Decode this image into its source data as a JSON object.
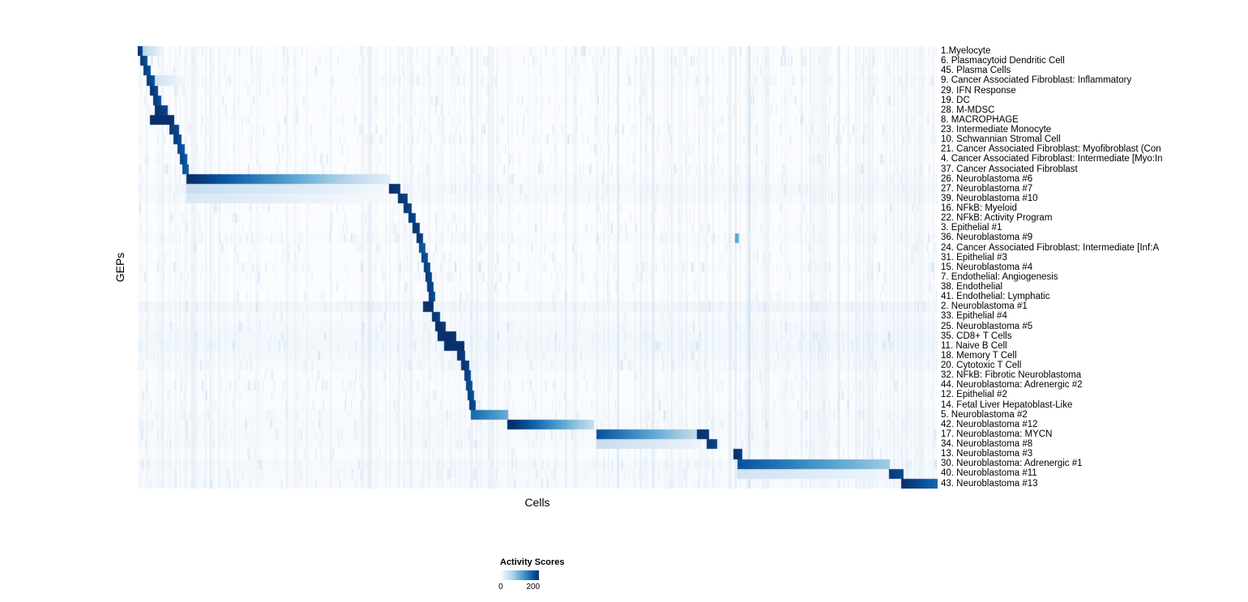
{
  "chart_data": {
    "type": "heatmap",
    "title": "",
    "xlabel": "Cells",
    "ylabel": "GEPs",
    "n_rows": 45,
    "x_axis": "individual cells (columns, unlabeled), grouped by cluster",
    "colorbar": {
      "title": "Activity Scores",
      "vmin": 0,
      "vmax": 235,
      "tick_values": [
        0,
        200
      ],
      "tick_labels": [
        "0",
        "200"
      ],
      "colors": [
        "#ffffff",
        "#deebf7",
        "#c6dbef",
        "#9ecae1",
        "#6baed6",
        "#4292c6",
        "#2171b5",
        "#08519c",
        "#08306b"
      ]
    },
    "column_guides": [
      0.315,
      0.339,
      0.365,
      0.381,
      0.417,
      0.463,
      0.574,
      0.711,
      0.747,
      0.94,
      0.955
    ],
    "rows": [
      {
        "label": "1.Myelocyte",
        "base": 4,
        "segments": [
          [
            0.0,
            0.007,
            232,
            205
          ],
          [
            0.007,
            0.03,
            70,
            12
          ]
        ]
      },
      {
        "label": "6. Plasmacytoid Dendritic Cell",
        "base": 4,
        "segments": [
          [
            0.004,
            0.012,
            226,
            202
          ]
        ]
      },
      {
        "label": "45. Plasma Cells",
        "base": 4,
        "segments": [
          [
            0.008,
            0.016,
            222,
            200
          ]
        ]
      },
      {
        "label": "9. Cancer Associated Fibroblast: Inflammatory",
        "base": 5,
        "segments": [
          [
            0.012,
            0.022,
            226,
            202
          ],
          [
            0.022,
            0.06,
            45,
            8
          ]
        ]
      },
      {
        "label": "29. IFN Response",
        "base": 4,
        "segments": [
          [
            0.016,
            0.025,
            234,
            210
          ]
        ]
      },
      {
        "label": "19. DC",
        "base": 4,
        "segments": [
          [
            0.02,
            0.029,
            226,
            206
          ]
        ]
      },
      {
        "label": "28. M-MDSC",
        "base": 4,
        "segments": [
          [
            0.022,
            0.037,
            234,
            216
          ]
        ]
      },
      {
        "label": "8. MACROPHAGE",
        "base": 4,
        "segments": [
          [
            0.016,
            0.045,
            246,
            236
          ]
        ]
      },
      {
        "label": "23. Intermediate Monocyte",
        "base": 4,
        "segments": [
          [
            0.04,
            0.051,
            230,
            212
          ]
        ]
      },
      {
        "label": "10. Schwannian Stromal Cell",
        "base": 4,
        "segments": [
          [
            0.045,
            0.054,
            226,
            206
          ]
        ]
      },
      {
        "label": "21. Cancer Associated Fibroblast: Myofibroblast (Con",
        "base": 4,
        "segments": [
          [
            0.05,
            0.058,
            216,
            200
          ]
        ]
      },
      {
        "label": "4. Cancer Associated Fibroblast: Intermediate [Myo:In",
        "base": 4,
        "segments": [
          [
            0.053,
            0.061,
            216,
            200
          ]
        ]
      },
      {
        "label": "37. Cancer Associated Fibroblast",
        "base": 4,
        "segments": [
          [
            0.056,
            0.063,
            206,
            190
          ]
        ]
      },
      {
        "label": "26. Neuroblastoma #6",
        "base": 6,
        "segments": [
          [
            0.061,
            0.315,
            240,
            25
          ]
        ]
      },
      {
        "label": "27. Neuroblastoma #7",
        "base": 9,
        "segments": [
          [
            0.061,
            0.315,
            55,
            10
          ],
          [
            0.315,
            0.328,
            236,
            226
          ]
        ]
      },
      {
        "label": "39. Neuroblastoma #10",
        "base": 7,
        "segments": [
          [
            0.061,
            0.315,
            35,
            8
          ],
          [
            0.326,
            0.337,
            230,
            220
          ]
        ]
      },
      {
        "label": "16. NFkB: Myeloid",
        "base": 4,
        "segments": [
          [
            0.333,
            0.342,
            228,
            214
          ]
        ]
      },
      {
        "label": "22. NFkB: Activity Program",
        "base": 4,
        "segments": [
          [
            0.339,
            0.347,
            228,
            214
          ]
        ]
      },
      {
        "label": "3. Epithelial #1",
        "base": 4,
        "segments": [
          [
            0.344,
            0.352,
            232,
            220
          ]
        ]
      },
      {
        "label": "36. Neuroblastoma #9",
        "base": 6,
        "segments": [
          [
            0.349,
            0.356,
            232,
            220
          ],
          [
            0.747,
            0.751,
            135,
            110
          ]
        ]
      },
      {
        "label": "24. Cancer Associated Fibroblast: Intermediate [Inf:A",
        "base": 4,
        "segments": [
          [
            0.352,
            0.359,
            206,
            194
          ]
        ]
      },
      {
        "label": "31. Epithelial #3",
        "base": 4,
        "segments": [
          [
            0.355,
            0.362,
            216,
            204
          ]
        ]
      },
      {
        "label": "15. Neuroblastoma #4",
        "base": 5,
        "segments": [
          [
            0.358,
            0.365,
            222,
            210
          ]
        ]
      },
      {
        "label": "7. Endothelial: Angiogenesis",
        "base": 4,
        "segments": [
          [
            0.36,
            0.367,
            226,
            214
          ]
        ]
      },
      {
        "label": "38. Endothelial",
        "base": 4,
        "segments": [
          [
            0.362,
            0.369,
            226,
            214
          ]
        ]
      },
      {
        "label": "41. Endothelial: Lymphatic",
        "base": 4,
        "segments": [
          [
            0.364,
            0.371,
            222,
            210
          ]
        ]
      },
      {
        "label": "2. Neuroblastoma #1",
        "base": 12,
        "segments": [
          [
            0.357,
            0.369,
            250,
            244
          ]
        ]
      },
      {
        "label": "33. Epithelial #4",
        "base": 6,
        "segments": [
          [
            0.368,
            0.377,
            232,
            220
          ]
        ]
      },
      {
        "label": "25. Neuroblastoma #5",
        "base": 9,
        "segments": [
          [
            0.372,
            0.384,
            238,
            226
          ]
        ]
      },
      {
        "label": "35. CD8+ T Cells",
        "base": 11,
        "segments": [
          [
            0.375,
            0.398,
            242,
            230
          ]
        ]
      },
      {
        "label": "11. Naive B Cell",
        "base": 11,
        "segments": [
          [
            0.383,
            0.408,
            246,
            238
          ]
        ]
      },
      {
        "label": "18. Memory T Cell",
        "base": 9,
        "segments": [
          [
            0.4,
            0.409,
            232,
            220
          ]
        ]
      },
      {
        "label": "20. Cytotoxic T Cell",
        "base": 7,
        "segments": [
          [
            0.405,
            0.414,
            232,
            220
          ]
        ]
      },
      {
        "label": "32. NFkB: Fibrotic Neuroblastoma",
        "base": 5,
        "segments": [
          [
            0.409,
            0.416,
            222,
            210
          ]
        ]
      },
      {
        "label": "44. Neuroblastoma: Adrenergic #2",
        "base": 5,
        "segments": [
          [
            0.411,
            0.418,
            218,
            206
          ]
        ]
      },
      {
        "label": "12. Epithelial #2",
        "base": 5,
        "segments": [
          [
            0.413,
            0.42,
            218,
            206
          ]
        ]
      },
      {
        "label": "14. Fetal Liver Hepatoblast-Like",
        "base": 5,
        "segments": [
          [
            0.415,
            0.422,
            222,
            210
          ]
        ]
      },
      {
        "label": "5. Neuroblastoma #2",
        "base": 7,
        "segments": [
          [
            0.417,
            0.463,
            185,
            118
          ]
        ]
      },
      {
        "label": "42. Neuroblastoma #12",
        "base": 7,
        "segments": [
          [
            0.463,
            0.57,
            248,
            55
          ]
        ]
      },
      {
        "label": "17. Neuroblastoma: MYCN",
        "base": 7,
        "segments": [
          [
            0.574,
            0.7,
            205,
            60
          ],
          [
            0.7,
            0.714,
            236,
            224
          ]
        ]
      },
      {
        "label": "34. Neuroblastoma #8",
        "base": 7,
        "segments": [
          [
            0.574,
            0.705,
            55,
            16
          ],
          [
            0.712,
            0.724,
            228,
            214
          ]
        ]
      },
      {
        "label": "13. Neuroblastoma #3",
        "base": 5,
        "segments": [
          [
            0.745,
            0.755,
            238,
            224
          ]
        ]
      },
      {
        "label": "30. Neuroblastoma: Adrenergic #1",
        "base": 9,
        "segments": [
          [
            0.75,
            0.94,
            205,
            85
          ]
        ]
      },
      {
        "label": "40. Neuroblastoma #11",
        "base": 7,
        "segments": [
          [
            0.75,
            0.94,
            45,
            14
          ],
          [
            0.94,
            0.957,
            226,
            210
          ]
        ]
      },
      {
        "label": "43. Neuroblastoma #13",
        "base": 7,
        "segments": [
          [
            0.955,
            1.0,
            236,
            185
          ]
        ]
      }
    ]
  }
}
